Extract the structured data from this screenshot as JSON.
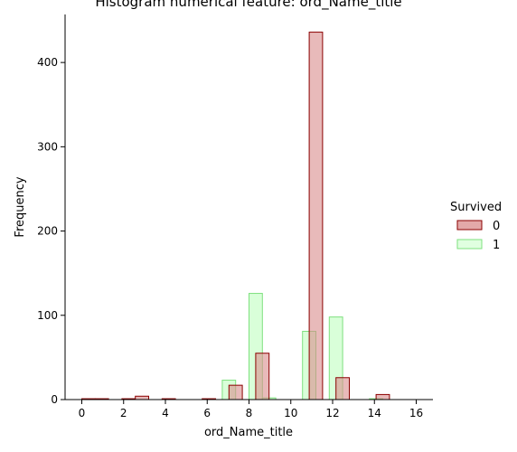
{
  "chart_data": {
    "type": "bar",
    "title": "Histogram numerical feature: ord_Name_title",
    "xlabel": "ord_Name_title",
    "ylabel": "Frequency",
    "xlim": [
      -0.8,
      16.8
    ],
    "ylim": [
      0,
      457
    ],
    "xticks": [
      0,
      2,
      4,
      6,
      8,
      10,
      12,
      14,
      16
    ],
    "yticks": [
      0,
      100,
      200,
      300,
      400
    ],
    "bin_width": 0.64,
    "legend": {
      "title": "Survived",
      "placement": "right"
    },
    "series": [
      {
        "name": "1",
        "fill": "#ccffcc",
        "stroke": "#7ee07e",
        "bins": [
          {
            "x": 6.72,
            "value": 23
          },
          {
            "x": 8.0,
            "value": 126
          },
          {
            "x": 8.64,
            "value": 2
          },
          {
            "x": 10.56,
            "value": 81
          },
          {
            "x": 11.84,
            "value": 98
          },
          {
            "x": 13.76,
            "value": 1
          }
        ]
      },
      {
        "name": "0",
        "fill": "#d98c8c",
        "stroke": "#8b0000",
        "bins": [
          {
            "x": 0.0,
            "value": 1
          },
          {
            "x": 0.64,
            "value": 1
          },
          {
            "x": 1.92,
            "value": 1
          },
          {
            "x": 2.56,
            "value": 4
          },
          {
            "x": 3.84,
            "value": 1
          },
          {
            "x": 5.76,
            "value": 1
          },
          {
            "x": 7.04,
            "value": 17
          },
          {
            "x": 8.32,
            "value": 55
          },
          {
            "x": 10.88,
            "value": 436
          },
          {
            "x": 12.16,
            "value": 26
          },
          {
            "x": 14.08,
            "value": 6
          }
        ]
      }
    ]
  }
}
